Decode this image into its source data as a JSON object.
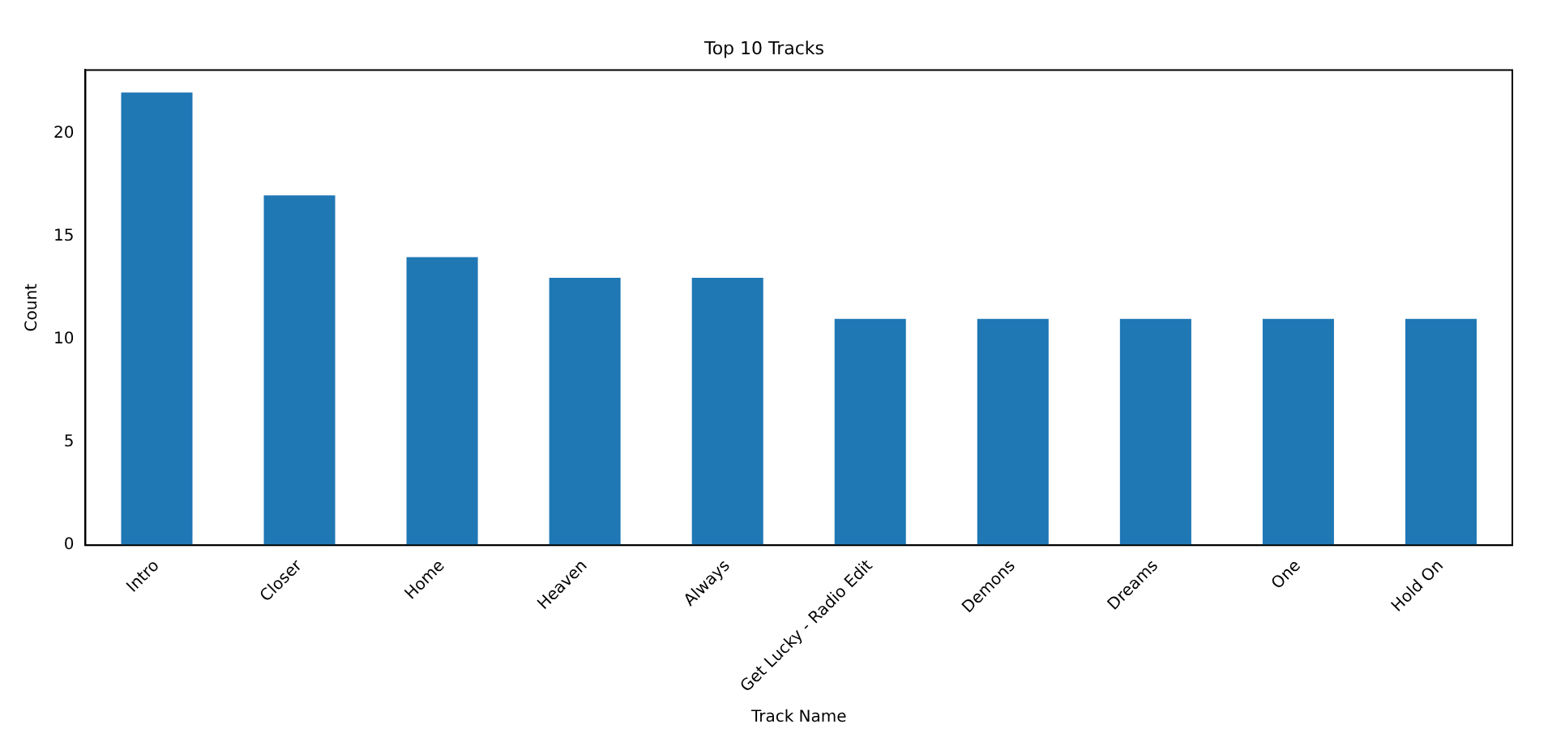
{
  "chart_data": {
    "type": "bar",
    "title": "Top 10 Tracks",
    "xlabel": "Track Name",
    "ylabel": "Count",
    "categories": [
      "Intro",
      "Closer",
      "Home",
      "Heaven",
      "Always",
      "Get Lucky - Radio Edit",
      "Demons",
      "Dreams",
      "One",
      "Hold On"
    ],
    "values": [
      22,
      17,
      14,
      13,
      13,
      11,
      11,
      11,
      11,
      11
    ],
    "color": "#1f77b4",
    "ylim": [
      0,
      23.1
    ],
    "yticks": [
      0,
      5,
      10,
      15,
      20
    ],
    "grid": false,
    "legend": false
  }
}
